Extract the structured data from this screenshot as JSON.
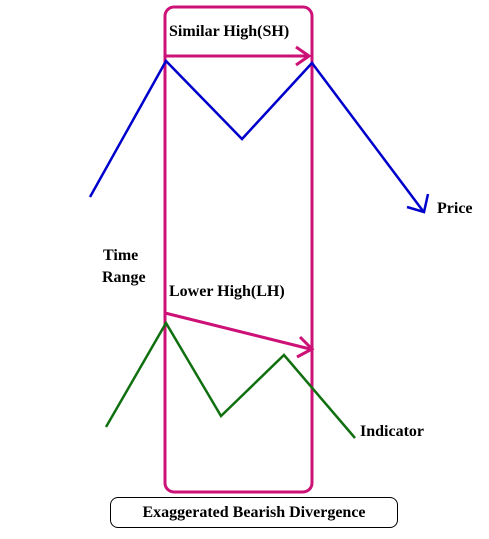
{
  "labels": {
    "similar_high": "Similar High(SH)",
    "lower_high": "Lower High(LH)",
    "time_range_line1": "Time",
    "time_range_line2": "Range",
    "price": "Price",
    "indicator": "Indicator"
  },
  "caption": "Exaggerated Bearish Divergence",
  "colors": {
    "price_line": "#0000cc",
    "indicator_line": "#107010",
    "time_range_box": "#cc1177",
    "annotation_arrows": "#cc1177",
    "text": "#000000"
  },
  "icons": {
    "price_arrowhead": "arrow-head-down-right",
    "similar_high_arrowhead": "arrow-head-right",
    "lower_high_arrowhead": "arrow-head-right"
  }
}
